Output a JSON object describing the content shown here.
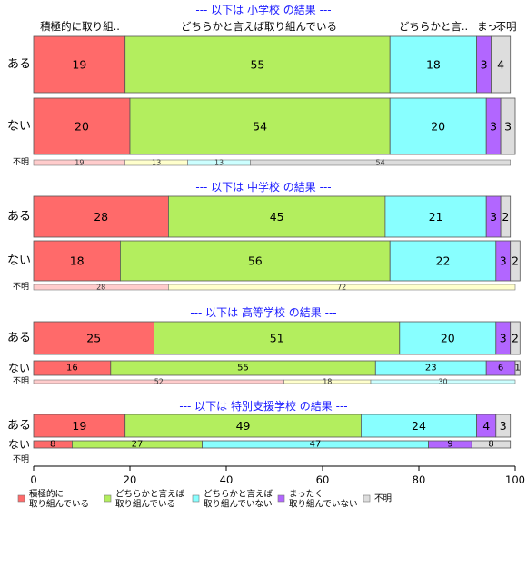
{
  "chart_data": {
    "type": "bar",
    "orientation": "horizontal",
    "stacked": true,
    "xlim": [
      0,
      100
    ],
    "xticks": [
      0,
      20,
      40,
      60,
      80,
      100
    ],
    "category_headers": [
      "積極的に取り組..",
      "どちらかと言えば取り組んでいる",
      "どちらかと言..",
      "まっ..",
      "不明"
    ],
    "legend_position": "bottom",
    "legend": [
      {
        "label": "積極的に\n取り組んでいる",
        "color": "#FF6A6A"
      },
      {
        "label": "どちらかと言えば\n取り組んでいる",
        "color": "#B3EE5E"
      },
      {
        "label": "どちらかと言えば\n取り組んでいない",
        "color": "#88FFFF"
      },
      {
        "label": "まったく\n取り組んでいない",
        "color": "#B266FF"
      },
      {
        "label": "不明",
        "color": "#DDDDDD"
      }
    ],
    "thin_colors": [
      "#FFCCCC",
      "#FFFFCC",
      "#CCFFFF",
      "#E8CCFF",
      "#DDDDDD"
    ],
    "groups": [
      {
        "title": "--- 以下は 小学校 の結果 ---",
        "bars": [
          {
            "label": "ある",
            "values": [
              19,
              55,
              18,
              3,
              4
            ]
          },
          {
            "label": "ない",
            "values": [
              20,
              54,
              20,
              3,
              3
            ]
          }
        ],
        "unknown": {
          "label": "不明",
          "values": [
            19,
            13,
            13,
            0,
            54
          ]
        }
      },
      {
        "title": "--- 以下は 中学校 の結果 ---",
        "bars": [
          {
            "label": "ある",
            "values": [
              28,
              45,
              21,
              3,
              2
            ]
          },
          {
            "label": "ない",
            "values": [
              18,
              56,
              22,
              3,
              2
            ]
          }
        ],
        "unknown": {
          "label": "不明",
          "values": [
            28,
            72,
            0,
            0,
            0
          ]
        }
      },
      {
        "title": "--- 以下は 高等学校 の結果 ---",
        "bars": [
          {
            "label": "ある",
            "values": [
              25,
              51,
              20,
              3,
              2
            ]
          },
          {
            "label": "ない",
            "values": [
              16,
              55,
              23,
              6,
              1
            ]
          }
        ],
        "unknown": {
          "label": "不明",
          "values": [
            52,
            18,
            30,
            0,
            0
          ]
        }
      },
      {
        "title": "--- 以下は 特別支援学校 の結果 ---",
        "bars": [
          {
            "label": "ある",
            "values": [
              19,
              49,
              24,
              4,
              3
            ]
          },
          {
            "label": "ない",
            "values": [
              8,
              27,
              47,
              9,
              8
            ]
          }
        ],
        "unknown": {
          "label": "不明",
          "values": []
        }
      }
    ]
  }
}
